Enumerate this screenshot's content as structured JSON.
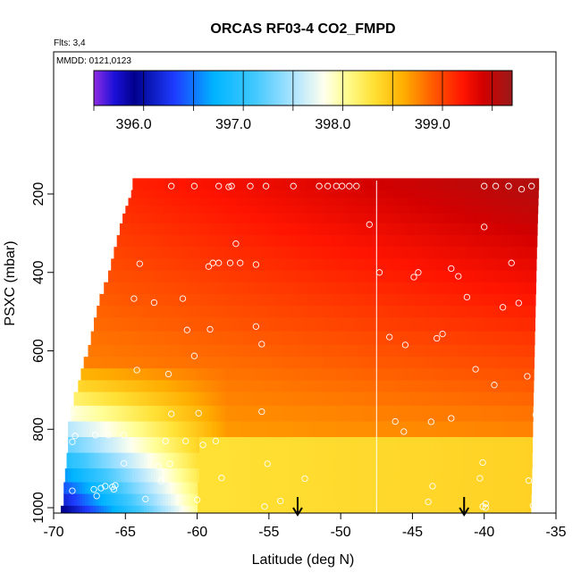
{
  "chart_data": {
    "type": "heatmap",
    "title": "ORCAS RF03-4 CO2_FMPD",
    "flights_label": "Flts: 3,4",
    "dates_label": "MMDD: 0121,0123",
    "xlabel": "Latitude (deg N)",
    "ylabel": "PSXC (mbar)",
    "xlim": [
      -70,
      -35
    ],
    "ylim": [
      1000,
      150
    ],
    "x_ticks": [
      -70,
      -65,
      -60,
      -55,
      -50,
      -45,
      -40,
      -35
    ],
    "y_ticks": [
      200,
      400,
      600,
      800,
      1000
    ],
    "colorbar": {
      "min": 395.6,
      "max": 399.8,
      "ticks": [
        396.0,
        397.0,
        398.0,
        399.0
      ],
      "tick_labels": [
        "396.0",
        "397.0",
        "398.0",
        "399.0"
      ],
      "dividers": [
        395.6,
        396.1,
        396.6,
        397.1,
        397.6,
        398.1,
        398.6,
        399.1,
        399.6
      ]
    },
    "vertical_line_lat": -47.5,
    "arrow_lats": [
      -53,
      -41.4
    ],
    "layers": [
      {
        "p": 180,
        "start": -64.5
      },
      {
        "p": 200,
        "start": -64.6
      },
      {
        "p": 220,
        "start": -64.8
      },
      {
        "p": 240,
        "start": -65.0
      },
      {
        "p": 260,
        "start": -65.2
      },
      {
        "p": 290,
        "start": -65.4
      },
      {
        "p": 320,
        "start": -65.6
      },
      {
        "p": 350,
        "start": -65.8
      },
      {
        "p": 380,
        "start": -66.0
      },
      {
        "p": 410,
        "start": -66.2
      },
      {
        "p": 440,
        "start": -66.5
      },
      {
        "p": 470,
        "start": -66.8
      },
      {
        "p": 500,
        "start": -67.0
      },
      {
        "p": 530,
        "start": -67.2
      },
      {
        "p": 570,
        "start": -67.4
      },
      {
        "p": 600,
        "start": -67.6
      },
      {
        "p": 630,
        "start": -67.9
      },
      {
        "p": 660,
        "start": -68.1
      },
      {
        "p": 690,
        "start": -68.3
      },
      {
        "p": 720,
        "start": -68.6
      },
      {
        "p": 760,
        "start": -68.8
      },
      {
        "p": 800,
        "start": -69.0
      },
      {
        "p": 840,
        "start": -69.0
      },
      {
        "p": 880,
        "start": -69.1
      },
      {
        "p": 920,
        "start": -69.2
      },
      {
        "p": 950,
        "start": -69.3
      },
      {
        "p": 980,
        "start": -69.3
      },
      {
        "p": 1010,
        "start": -69.5
      }
    ],
    "observations": [
      [
        -64.8,
        180
      ],
      [
        -61.8,
        180
      ],
      [
        -60.2,
        180
      ],
      [
        -58.5,
        180
      ],
      [
        -57.8,
        182
      ],
      [
        -57.6,
        180
      ],
      [
        -56.3,
        180
      ],
      [
        -55.2,
        180
      ],
      [
        -53.3,
        180
      ],
      [
        -51.5,
        180
      ],
      [
        -50.9,
        180
      ],
      [
        -50.3,
        180
      ],
      [
        -49.9,
        180
      ],
      [
        -49.4,
        180
      ],
      [
        -48.9,
        180
      ],
      [
        -37.4,
        188
      ],
      [
        -36.7,
        180
      ],
      [
        -38.3,
        180
      ],
      [
        -39.2,
        180
      ],
      [
        -40.0,
        180
      ],
      [
        -35.4,
        180
      ],
      [
        -48.0,
        278
      ],
      [
        -40.0,
        284
      ],
      [
        -57.3,
        327
      ],
      [
        -64.0,
        378
      ],
      [
        -58.9,
        376
      ],
      [
        -58.5,
        376
      ],
      [
        -57.7,
        376
      ],
      [
        -57.0,
        376
      ],
      [
        -55.9,
        380
      ],
      [
        -59.2,
        385
      ],
      [
        -42.3,
        390
      ],
      [
        -35.1,
        390
      ],
      [
        -38.1,
        376
      ],
      [
        -47.3,
        400
      ],
      [
        -44.6,
        400
      ],
      [
        -44.9,
        412
      ],
      [
        -41.8,
        410
      ],
      [
        -64.4,
        467
      ],
      [
        -61.0,
        467
      ],
      [
        -63.0,
        477
      ],
      [
        -41.2,
        463
      ],
      [
        -37.6,
        478
      ],
      [
        -38.7,
        489
      ],
      [
        -55.9,
        538
      ],
      [
        -60.7,
        547
      ],
      [
        -59.1,
        545
      ],
      [
        -35.7,
        553
      ],
      [
        -46.6,
        565
      ],
      [
        -43.3,
        568
      ],
      [
        -42.9,
        557
      ],
      [
        -45.5,
        585
      ],
      [
        -55.5,
        583
      ],
      [
        -60.2,
        613
      ],
      [
        -64.2,
        649
      ],
      [
        -62.0,
        659
      ],
      [
        -40.6,
        647
      ],
      [
        -37.0,
        665
      ],
      [
        -39.3,
        687
      ],
      [
        -42.3,
        772
      ],
      [
        -43.7,
        781
      ],
      [
        -46.2,
        780
      ],
      [
        -45.6,
        806
      ],
      [
        -36.4,
        763
      ],
      [
        -68.8,
        759
      ],
      [
        -61.8,
        761
      ],
      [
        -59.9,
        759
      ],
      [
        -55.5,
        755
      ],
      [
        -68.5,
        817
      ],
      [
        -68.7,
        832
      ],
      [
        -67.1,
        815
      ],
      [
        -66.2,
        815
      ],
      [
        -65.1,
        815
      ],
      [
        -59.6,
        840
      ],
      [
        -60.8,
        830
      ],
      [
        -58.7,
        830
      ],
      [
        -62.2,
        830
      ],
      [
        -65.1,
        887
      ],
      [
        -62.7,
        895
      ],
      [
        -61.9,
        888
      ],
      [
        -55.1,
        888
      ],
      [
        -40.1,
        885
      ],
      [
        -66.7,
        950
      ],
      [
        -67.2,
        953
      ],
      [
        -67.0,
        970
      ],
      [
        -65.9,
        947
      ],
      [
        -65.8,
        953
      ],
      [
        -68.7,
        957
      ],
      [
        -66.4,
        945
      ],
      [
        -65.7,
        943
      ],
      [
        -62.5,
        932
      ],
      [
        -58.3,
        924
      ],
      [
        -52.5,
        926
      ],
      [
        -40.3,
        925
      ],
      [
        -43.6,
        945
      ],
      [
        -36.9,
        931
      ],
      [
        -63.6,
        978
      ],
      [
        -60.0,
        980
      ],
      [
        -54.2,
        983
      ],
      [
        -43.9,
        985
      ],
      [
        -39.9,
        990
      ],
      [
        -36.6,
        995
      ],
      [
        -55.3,
        997
      ],
      [
        -40.1,
        997
      ],
      [
        -39.9,
        1000
      ]
    ]
  }
}
